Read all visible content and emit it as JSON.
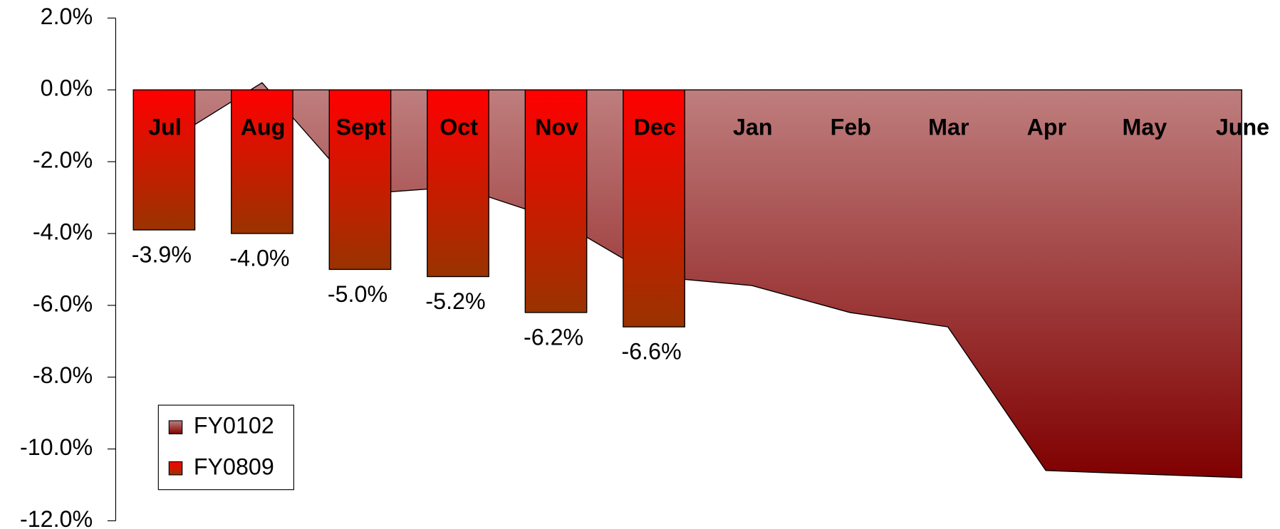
{
  "chart_data": {
    "type": "bar-area",
    "categories": [
      "Jul",
      "Aug",
      "Sept",
      "Oct",
      "Nov",
      "Dec",
      "Jan",
      "Feb",
      "Mar",
      "Apr",
      "May",
      "June"
    ],
    "series": [
      {
        "name": "FY0102",
        "type": "area",
        "color": "#c08080",
        "values": [
          -1.5,
          0.2,
          -2.9,
          -2.7,
          -3.6,
          -5.2,
          -5.45,
          -6.2,
          -6.6,
          -10.6,
          -10.7,
          -10.8
        ]
      },
      {
        "name": "FY0809",
        "type": "bar",
        "color": "#ff0000",
        "values": [
          -3.9,
          -4.0,
          -5.0,
          -5.2,
          -6.2,
          -6.6,
          null,
          null,
          null,
          null,
          null,
          null
        ],
        "value_labels": [
          "-3.9%",
          "-4.0%",
          "-5.0%",
          "-5.2%",
          "-6.2%",
          "-6.6%",
          null,
          null,
          null,
          null,
          null,
          null
        ]
      }
    ],
    "ylim": [
      -12,
      2
    ],
    "yticks": [
      {
        "value": 2,
        "label": "2.0%"
      },
      {
        "value": 0,
        "label": "0.0%"
      },
      {
        "value": -2,
        "label": "-2.0%"
      },
      {
        "value": -4,
        "label": "-4.0%"
      },
      {
        "value": -6,
        "label": "-6.0%"
      },
      {
        "value": -8,
        "label": "-8.0%"
      },
      {
        "value": -10,
        "label": "-10.0%"
      },
      {
        "value": -12,
        "label": "-12.0%"
      }
    ],
    "legend": "bottom-left"
  }
}
